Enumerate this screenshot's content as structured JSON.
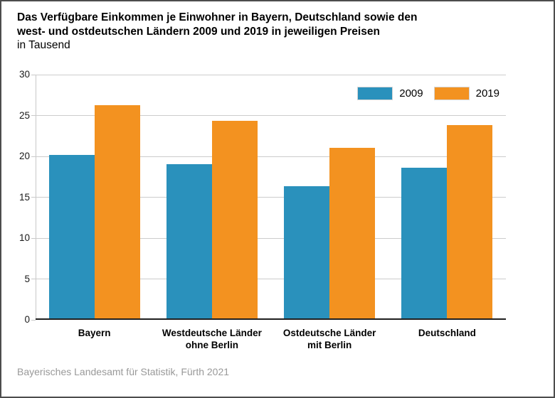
{
  "title": {
    "line1": "Das Verfügbare Einkommen je Einwohner in Bayern, Deutschland sowie den",
    "line2": "west- und ostdeutschen Ländern 2009 und 2019 in jeweiligen Preisen",
    "subtitle": "in Tausend"
  },
  "footer": "Bayerisches Landesamt für Statistik, Fürth 2021",
  "colors": {
    "series_2009": "#2a91bc",
    "series_2019": "#f39220",
    "gridline": "#cccccc",
    "axis_bottom": "#1f1f1f",
    "footer_text": "#999999"
  },
  "chart_data": {
    "type": "bar",
    "title": "Das Verfügbare Einkommen je Einwohner in Bayern, Deutschland sowie den west- und ostdeutschen Ländern 2009 und 2019 in jeweiligen Preisen",
    "subtitle": "in Tausend",
    "categories": [
      "Bayern",
      "Westdeutsche Länder\nohne Berlin",
      "Ostdeutsche Länder\nmit Berlin",
      "Deutschland"
    ],
    "series": [
      {
        "name": "2009",
        "color": "#2a91bc",
        "values": [
          20.1,
          19.0,
          16.3,
          18.5
        ]
      },
      {
        "name": "2019",
        "color": "#f39220",
        "values": [
          26.2,
          24.3,
          21.0,
          23.7
        ]
      }
    ],
    "ylabel": "",
    "xlabel": "",
    "ylim": [
      0,
      30
    ],
    "yticks": [
      0,
      5,
      10,
      15,
      20,
      25,
      30
    ],
    "grid": "horizontal",
    "legend_position": "top-right"
  }
}
